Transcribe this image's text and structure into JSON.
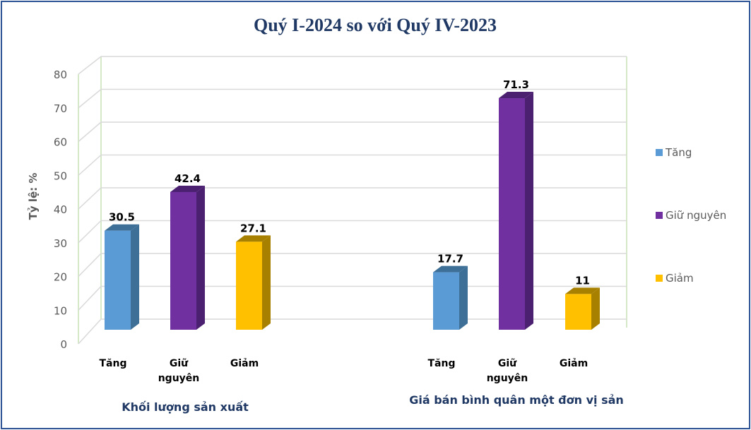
{
  "chart_data": {
    "type": "bar",
    "title": "Quý I-2024 so với Quý IV-2023",
    "ylabel": "Tỷ lệ: %",
    "ylim": [
      0,
      80
    ],
    "yticks": [
      0,
      10,
      20,
      30,
      40,
      50,
      60,
      70,
      80
    ],
    "grid": true,
    "three_d": true,
    "legend_placement": "right",
    "groups": [
      {
        "label": "Khối lượng sản xuất",
        "categories": [
          [
            "Tăng"
          ],
          [
            "Giữ",
            "nguyên"
          ],
          [
            "Giảm"
          ]
        ],
        "values": [
          30.5,
          42.4,
          27.1
        ],
        "value_labels": [
          "30.5",
          "42.4",
          "27.1"
        ]
      },
      {
        "label": "Giá bán bình quân một đơn vị sản",
        "categories": [
          [
            "Tăng"
          ],
          [
            "Giữ",
            "nguyên"
          ],
          [
            "Giảm"
          ]
        ],
        "values": [
          17.7,
          71.3,
          11
        ],
        "value_labels": [
          "17.7",
          "71.3",
          "11"
        ]
      }
    ],
    "series": [
      {
        "name": "Tăng",
        "color": "#5b9bd5",
        "side": "#3e6f96"
      },
      {
        "name": "Giữ nguyên",
        "color": "#7030a0",
        "side": "#4b2070"
      },
      {
        "name": "Giảm",
        "color": "#ffc000",
        "side": "#a88000"
      }
    ],
    "colors": {
      "title": "#1f3864",
      "frame": "#2f5597",
      "wall": "#d5e8c8",
      "grid": "#d9d9d9"
    }
  }
}
